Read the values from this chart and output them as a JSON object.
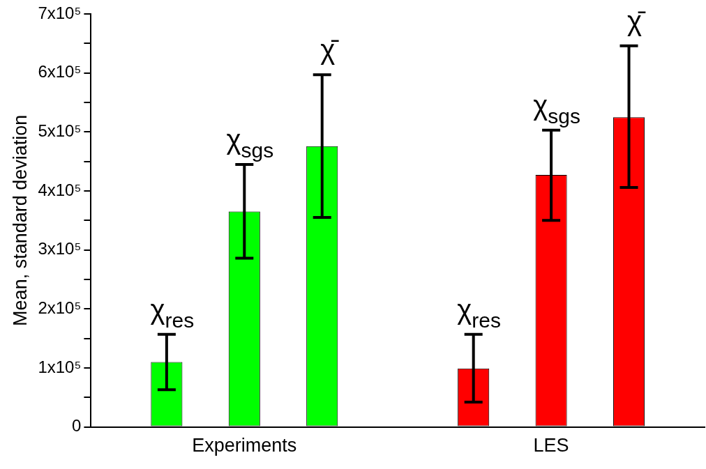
{
  "chart_data": {
    "type": "bar",
    "ylabel": "Mean, standard deviation",
    "categories": [
      "Experiments",
      "LES"
    ],
    "series": [
      {
        "name": "χ$_{res}$",
        "colors": [
          "#00ff00",
          "#ff0000"
        ],
        "values": [
          110000,
          99000
        ],
        "errors": [
          [
            63000,
            157000
          ],
          [
            42000,
            157000
          ]
        ]
      },
      {
        "name": "χ$_{sgs}$",
        "colors": [
          "#00ff00",
          "#ff0000"
        ],
        "values": [
          365000,
          427000
        ],
        "errors": [
          [
            286000,
            445000
          ],
          [
            350000,
            503000
          ]
        ]
      },
      {
        "name": "χ̄",
        "colors": [
          "#00ff00",
          "#ff0000"
        ],
        "values": [
          476000,
          525000
        ],
        "errors": [
          [
            355000,
            597000
          ],
          [
            406000,
            646000
          ]
        ]
      }
    ],
    "ylim": [
      0,
      700000
    ],
    "yticks": [
      0,
      {
        "value": 50000,
        "label": null
      },
      {
        "value": 100000,
        "label": "1x10⁵"
      },
      {
        "value": 150000,
        "label": null
      },
      {
        "value": 200000,
        "label": "2x10⁵"
      },
      {
        "value": 250000,
        "label": null
      },
      {
        "value": 300000,
        "label": "3x10⁵"
      },
      {
        "value": 350000,
        "label": null
      },
      {
        "value": 400000,
        "label": "4x10⁵"
      },
      {
        "value": 450000,
        "label": null
      },
      {
        "value": 500000,
        "label": "5x10⁵"
      },
      {
        "value": 550000,
        "label": null
      },
      {
        "value": 600000,
        "label": "6x10⁵"
      },
      {
        "value": 650000,
        "label": null
      },
      {
        "value": 700000,
        "label": "7x10⁵"
      }
    ],
    "grid": false
  }
}
